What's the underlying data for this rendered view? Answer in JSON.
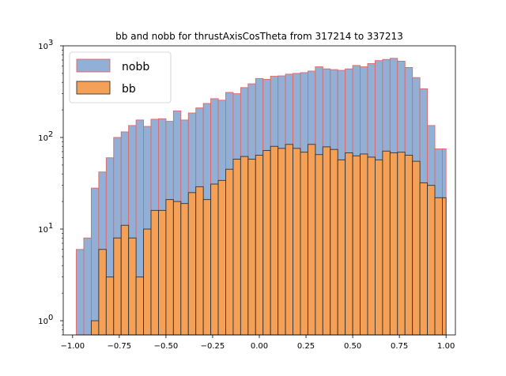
{
  "chart_data": {
    "type": "bar",
    "title": "bb and nobb for thrustAxisCosTheta from 317214 to 337213",
    "xlabel": "",
    "ylabel": "",
    "yscale": "log",
    "xlim": [
      -1.05,
      1.05
    ],
    "ylim": [
      0.7,
      1000
    ],
    "x_ticks": [
      -1.0,
      -0.75,
      -0.5,
      -0.25,
      0.0,
      0.25,
      0.5,
      0.75,
      1.0
    ],
    "x_tick_labels": [
      "−1.00",
      "−0.75",
      "−0.50",
      "−0.25",
      "0.00",
      "0.25",
      "0.50",
      "0.75",
      "1.00"
    ],
    "y_ticks": [
      1,
      10,
      100,
      1000
    ],
    "y_tick_labels": [
      [
        "10",
        "0"
      ],
      [
        "10",
        "1"
      ],
      [
        "10",
        "2"
      ],
      [
        "10",
        "3"
      ]
    ],
    "grid": false,
    "legend_position": "top-left",
    "bin_edges": [
      -0.98,
      -0.94,
      -0.9,
      -0.86,
      -0.82,
      -0.78,
      -0.74,
      -0.7,
      -0.66,
      -0.62,
      -0.58,
      -0.54,
      -0.5,
      -0.46,
      -0.42,
      -0.38,
      -0.34,
      -0.3,
      -0.26,
      -0.22,
      -0.18,
      -0.14,
      -0.1,
      -0.06,
      -0.02,
      0.02,
      0.06,
      0.1,
      0.14,
      0.18,
      0.22,
      0.26,
      0.3,
      0.34,
      0.38,
      0.42,
      0.46,
      0.5,
      0.54,
      0.58,
      0.62,
      0.66,
      0.7,
      0.74,
      0.78,
      0.82,
      0.86,
      0.9,
      0.94,
      0.98,
      1.0
    ],
    "series": [
      {
        "name": "nobb",
        "fill": "#92b0d6",
        "edge": "#e06666",
        "values": [
          6,
          8,
          28,
          42,
          60,
          100,
          115,
          135,
          155,
          132,
          158,
          160,
          150,
          195,
          155,
          185,
          210,
          235,
          265,
          255,
          310,
          300,
          350,
          385,
          440,
          430,
          465,
          470,
          490,
          500,
          510,
          530,
          590,
          560,
          550,
          540,
          560,
          610,
          590,
          640,
          690,
          710,
          730,
          680,
          580,
          450,
          340,
          135,
          75,
          75
        ]
      },
      {
        "name": "bb",
        "fill": "#f4a056",
        "edge": "#333333",
        "values": [
          0,
          0,
          1,
          6,
          3,
          8,
          11,
          8,
          3,
          10,
          16,
          16,
          21,
          20,
          19,
          25,
          29,
          21,
          31,
          34,
          45,
          58,
          62,
          58,
          64,
          72,
          80,
          76,
          84,
          76,
          69,
          84,
          65,
          79,
          74,
          57,
          68,
          63,
          66,
          61,
          57,
          71,
          68,
          69,
          64,
          55,
          32,
          30,
          22,
          22
        ]
      }
    ]
  }
}
